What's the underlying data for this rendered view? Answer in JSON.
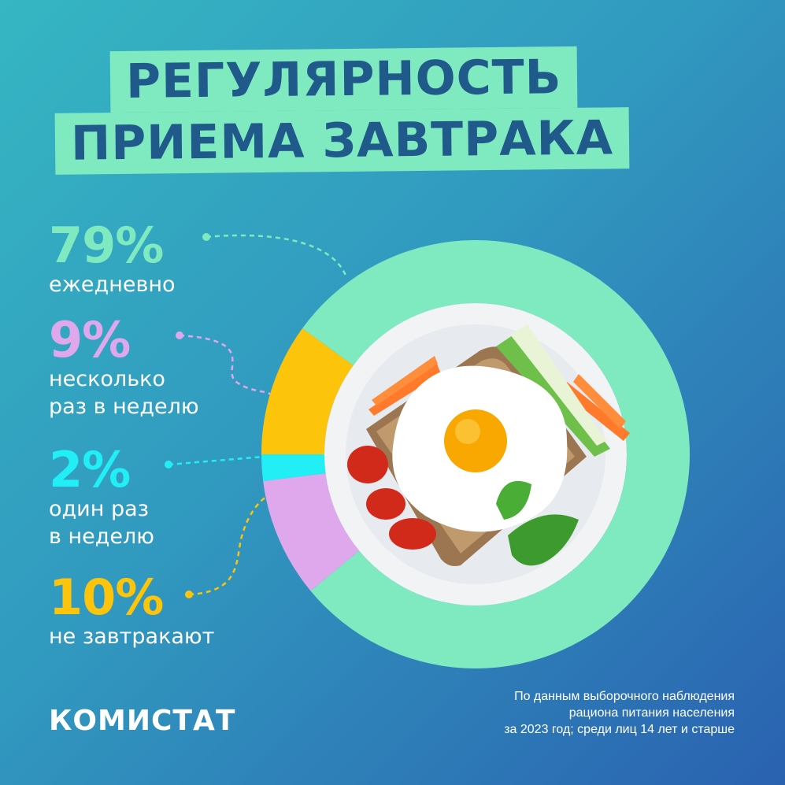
{
  "header": {
    "title_line1": "РЕГУЛЯРНОСТЬ",
    "title_line2": "ПРИЕМА ЗАВТРАКА"
  },
  "stats": [
    {
      "percent": "79%",
      "label_line1": "ежедневно",
      "label_line2": "",
      "color": "#7fe9c0"
    },
    {
      "percent": "9%",
      "label_line1": "несколько",
      "label_line2": "раз в неделю",
      "color": "#e0a8ec"
    },
    {
      "percent": "2%",
      "label_line1": "один раз",
      "label_line2": "в неделю",
      "color": "#22eef5"
    },
    {
      "percent": "10%",
      "label_line1": "не завтракают",
      "label_line2": "",
      "color": "#fcc40a"
    }
  ],
  "chart_data": {
    "type": "pie",
    "style": "donut",
    "categories": [
      "ежедневно",
      "несколько раз в неделю",
      "один раз в неделю",
      "не завтракают"
    ],
    "values": [
      79,
      9,
      2,
      10
    ],
    "colors": [
      "#7fe9c0",
      "#e0a8ec",
      "#22eef5",
      "#fcc40a"
    ],
    "title": "РЕГУЛЯРНОСТЬ ПРИЕМА ЗАВТРАКА"
  },
  "footer": {
    "brand": "КОМИСТАТ",
    "source_line1": "По данным выборочного наблюдения",
    "source_line2": "рациона питания населения",
    "source_line3": "за 2023 год; среди лиц 14 лет и старше"
  }
}
